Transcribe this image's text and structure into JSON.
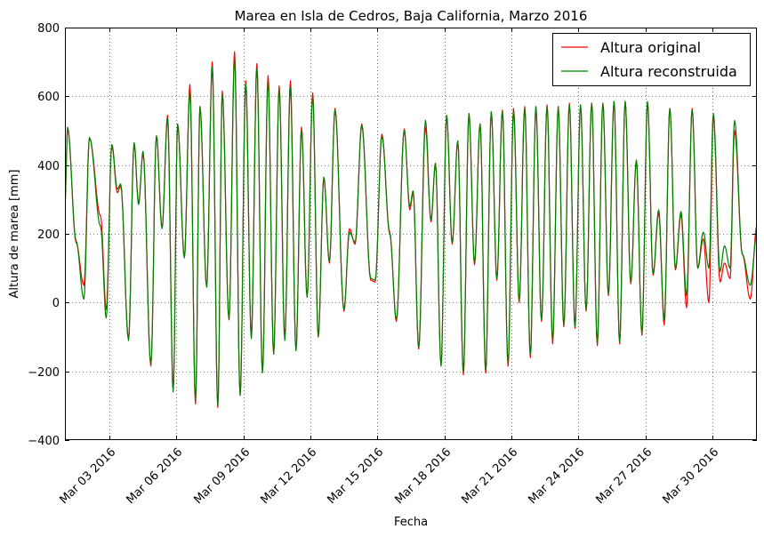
{
  "chart_data": {
    "type": "line",
    "title": "Marea en Isla de Cedros, Baja California, Marzo 2016",
    "xlabel": "Fecha",
    "ylabel": "Altura de marea [mm]",
    "x_range_days": [
      1,
      32.0
    ],
    "ylim": [
      -400,
      800
    ],
    "yticks": [
      -400,
      -200,
      0,
      200,
      400,
      600,
      800
    ],
    "ytick_labels": [
      "−400",
      "−200",
      "0",
      "200",
      "400",
      "600",
      "800"
    ],
    "xticks": [
      3,
      6,
      9,
      12,
      15,
      18,
      21,
      24,
      27,
      30
    ],
    "xtick_labels": [
      "Mar 03 2016",
      "Mar 06 2016",
      "Mar 09 2016",
      "Mar 12 2016",
      "Mar 15 2016",
      "Mar 18 2016",
      "Mar 21 2016",
      "Mar 24 2016",
      "Mar 27 2016",
      "Mar 30 2016"
    ],
    "grid": true,
    "legend_position": "top-right",
    "series": [
      {
        "name": "Altura original",
        "color": "#ff0000",
        "extrema": [
          [
            1.0,
            290
          ],
          [
            1.12,
            505
          ],
          [
            1.5,
            175
          ],
          [
            1.85,
            50
          ],
          [
            2.1,
            480
          ],
          [
            2.6,
            250
          ],
          [
            2.85,
            -20
          ],
          [
            3.1,
            455
          ],
          [
            3.35,
            320
          ],
          [
            3.5,
            340
          ],
          [
            3.85,
            -105
          ],
          [
            4.1,
            460
          ],
          [
            4.3,
            290
          ],
          [
            4.5,
            435
          ],
          [
            4.85,
            -185
          ],
          [
            5.1,
            485
          ],
          [
            5.35,
            220
          ],
          [
            5.6,
            545
          ],
          [
            5.85,
            -255
          ],
          [
            6.05,
            515
          ],
          [
            6.35,
            135
          ],
          [
            6.6,
            635
          ],
          [
            6.85,
            -295
          ],
          [
            7.05,
            570
          ],
          [
            7.35,
            45
          ],
          [
            7.6,
            700
          ],
          [
            7.85,
            -305
          ],
          [
            8.05,
            615
          ],
          [
            8.35,
            -50
          ],
          [
            8.6,
            730
          ],
          [
            8.85,
            -270
          ],
          [
            9.1,
            645
          ],
          [
            9.35,
            -100
          ],
          [
            9.6,
            695
          ],
          [
            9.85,
            -200
          ],
          [
            10.1,
            660
          ],
          [
            10.35,
            -150
          ],
          [
            10.6,
            630
          ],
          [
            10.85,
            -100
          ],
          [
            11.1,
            645
          ],
          [
            11.35,
            -140
          ],
          [
            11.6,
            510
          ],
          [
            11.85,
            20
          ],
          [
            12.1,
            610
          ],
          [
            12.35,
            -100
          ],
          [
            12.6,
            360
          ],
          [
            12.85,
            115
          ],
          [
            13.1,
            565
          ],
          [
            13.5,
            -25
          ],
          [
            13.75,
            215
          ],
          [
            14.0,
            170
          ],
          [
            14.3,
            520
          ],
          [
            14.7,
            65
          ],
          [
            14.9,
            60
          ],
          [
            15.2,
            490
          ],
          [
            15.55,
            205
          ],
          [
            15.85,
            -55
          ],
          [
            16.2,
            505
          ],
          [
            16.45,
            270
          ],
          [
            16.6,
            320
          ],
          [
            16.85,
            -135
          ],
          [
            17.15,
            510
          ],
          [
            17.4,
            235
          ],
          [
            17.6,
            405
          ],
          [
            17.85,
            -180
          ],
          [
            18.1,
            545
          ],
          [
            18.35,
            170
          ],
          [
            18.6,
            470
          ],
          [
            18.85,
            -210
          ],
          [
            19.1,
            550
          ],
          [
            19.35,
            110
          ],
          [
            19.6,
            520
          ],
          [
            19.85,
            -205
          ],
          [
            20.1,
            555
          ],
          [
            20.35,
            65
          ],
          [
            20.6,
            560
          ],
          [
            20.85,
            -185
          ],
          [
            21.1,
            565
          ],
          [
            21.35,
            0
          ],
          [
            21.6,
            570
          ],
          [
            21.85,
            -160
          ],
          [
            22.1,
            570
          ],
          [
            22.35,
            -55
          ],
          [
            22.6,
            575
          ],
          [
            22.85,
            -120
          ],
          [
            23.1,
            570
          ],
          [
            23.35,
            -70
          ],
          [
            23.6,
            580
          ],
          [
            23.85,
            -75
          ],
          [
            24.1,
            575
          ],
          [
            24.35,
            -25
          ],
          [
            24.6,
            580
          ],
          [
            24.85,
            -125
          ],
          [
            25.1,
            580
          ],
          [
            25.35,
            20
          ],
          [
            25.6,
            585
          ],
          [
            25.85,
            -120
          ],
          [
            26.1,
            585
          ],
          [
            26.35,
            55
          ],
          [
            26.6,
            410
          ],
          [
            26.85,
            -95
          ],
          [
            27.1,
            580
          ],
          [
            27.35,
            80
          ],
          [
            27.6,
            260
          ],
          [
            27.85,
            -65
          ],
          [
            28.1,
            565
          ],
          [
            28.35,
            95
          ],
          [
            28.6,
            255
          ],
          [
            28.85,
            -15
          ],
          [
            29.1,
            565
          ],
          [
            29.35,
            100
          ],
          [
            29.6,
            185
          ],
          [
            29.85,
            0
          ],
          [
            30.05,
            540
          ],
          [
            30.35,
            60
          ],
          [
            30.55,
            115
          ],
          [
            30.8,
            70
          ],
          [
            31.0,
            500
          ],
          [
            31.35,
            140
          ],
          [
            31.7,
            10
          ],
          [
            32.0,
            225
          ]
        ]
      },
      {
        "name": "Altura reconstruida",
        "color": "#008000",
        "extrema": [
          [
            1.0,
            290
          ],
          [
            1.12,
            510
          ],
          [
            1.5,
            180
          ],
          [
            1.85,
            10
          ],
          [
            2.1,
            480
          ],
          [
            2.6,
            220
          ],
          [
            2.85,
            -45
          ],
          [
            3.1,
            460
          ],
          [
            3.35,
            330
          ],
          [
            3.5,
            345
          ],
          [
            3.85,
            -110
          ],
          [
            4.1,
            465
          ],
          [
            4.3,
            285
          ],
          [
            4.5,
            440
          ],
          [
            4.85,
            -180
          ],
          [
            5.1,
            485
          ],
          [
            5.35,
            215
          ],
          [
            5.6,
            535
          ],
          [
            5.85,
            -260
          ],
          [
            6.05,
            520
          ],
          [
            6.35,
            130
          ],
          [
            6.6,
            615
          ],
          [
            6.85,
            -285
          ],
          [
            7.05,
            570
          ],
          [
            7.35,
            45
          ],
          [
            7.6,
            685
          ],
          [
            7.85,
            -300
          ],
          [
            8.05,
            605
          ],
          [
            8.35,
            -50
          ],
          [
            8.6,
            710
          ],
          [
            8.85,
            -270
          ],
          [
            9.1,
            635
          ],
          [
            9.35,
            -105
          ],
          [
            9.6,
            680
          ],
          [
            9.85,
            -205
          ],
          [
            10.1,
            645
          ],
          [
            10.35,
            -150
          ],
          [
            10.6,
            620
          ],
          [
            10.85,
            -110
          ],
          [
            11.1,
            625
          ],
          [
            11.35,
            -140
          ],
          [
            11.6,
            500
          ],
          [
            11.85,
            15
          ],
          [
            12.1,
            600
          ],
          [
            12.35,
            -100
          ],
          [
            12.6,
            365
          ],
          [
            12.85,
            120
          ],
          [
            13.1,
            560
          ],
          [
            13.5,
            -20
          ],
          [
            13.75,
            205
          ],
          [
            14.0,
            175
          ],
          [
            14.3,
            515
          ],
          [
            14.7,
            70
          ],
          [
            14.9,
            65
          ],
          [
            15.2,
            485
          ],
          [
            15.55,
            200
          ],
          [
            15.85,
            -50
          ],
          [
            16.2,
            500
          ],
          [
            16.45,
            280
          ],
          [
            16.6,
            325
          ],
          [
            16.85,
            -130
          ],
          [
            17.15,
            530
          ],
          [
            17.4,
            240
          ],
          [
            17.6,
            405
          ],
          [
            17.85,
            -185
          ],
          [
            18.1,
            545
          ],
          [
            18.35,
            175
          ],
          [
            18.6,
            470
          ],
          [
            18.85,
            -200
          ],
          [
            19.1,
            550
          ],
          [
            19.35,
            115
          ],
          [
            19.6,
            520
          ],
          [
            19.85,
            -195
          ],
          [
            20.1,
            555
          ],
          [
            20.35,
            70
          ],
          [
            20.6,
            555
          ],
          [
            20.85,
            -175
          ],
          [
            21.1,
            560
          ],
          [
            21.35,
            5
          ],
          [
            21.6,
            565
          ],
          [
            21.85,
            -150
          ],
          [
            22.1,
            570
          ],
          [
            22.35,
            -50
          ],
          [
            22.6,
            570
          ],
          [
            22.85,
            -110
          ],
          [
            23.1,
            570
          ],
          [
            23.35,
            -65
          ],
          [
            23.6,
            575
          ],
          [
            23.85,
            -70
          ],
          [
            24.1,
            575
          ],
          [
            24.35,
            -20
          ],
          [
            24.6,
            580
          ],
          [
            24.85,
            -120
          ],
          [
            25.1,
            580
          ],
          [
            25.35,
            25
          ],
          [
            25.6,
            585
          ],
          [
            25.85,
            -115
          ],
          [
            26.1,
            585
          ],
          [
            26.35,
            60
          ],
          [
            26.6,
            415
          ],
          [
            26.85,
            -90
          ],
          [
            27.1,
            585
          ],
          [
            27.35,
            85
          ],
          [
            27.6,
            270
          ],
          [
            27.85,
            -50
          ],
          [
            28.1,
            565
          ],
          [
            28.35,
            100
          ],
          [
            28.6,
            265
          ],
          [
            28.85,
            20
          ],
          [
            29.1,
            560
          ],
          [
            29.35,
            100
          ],
          [
            29.6,
            205
          ],
          [
            29.85,
            100
          ],
          [
            30.05,
            550
          ],
          [
            30.35,
            90
          ],
          [
            30.55,
            165
          ],
          [
            30.8,
            100
          ],
          [
            31.0,
            530
          ],
          [
            31.35,
            140
          ],
          [
            31.7,
            50
          ],
          [
            32.0,
            200
          ]
        ]
      }
    ]
  }
}
